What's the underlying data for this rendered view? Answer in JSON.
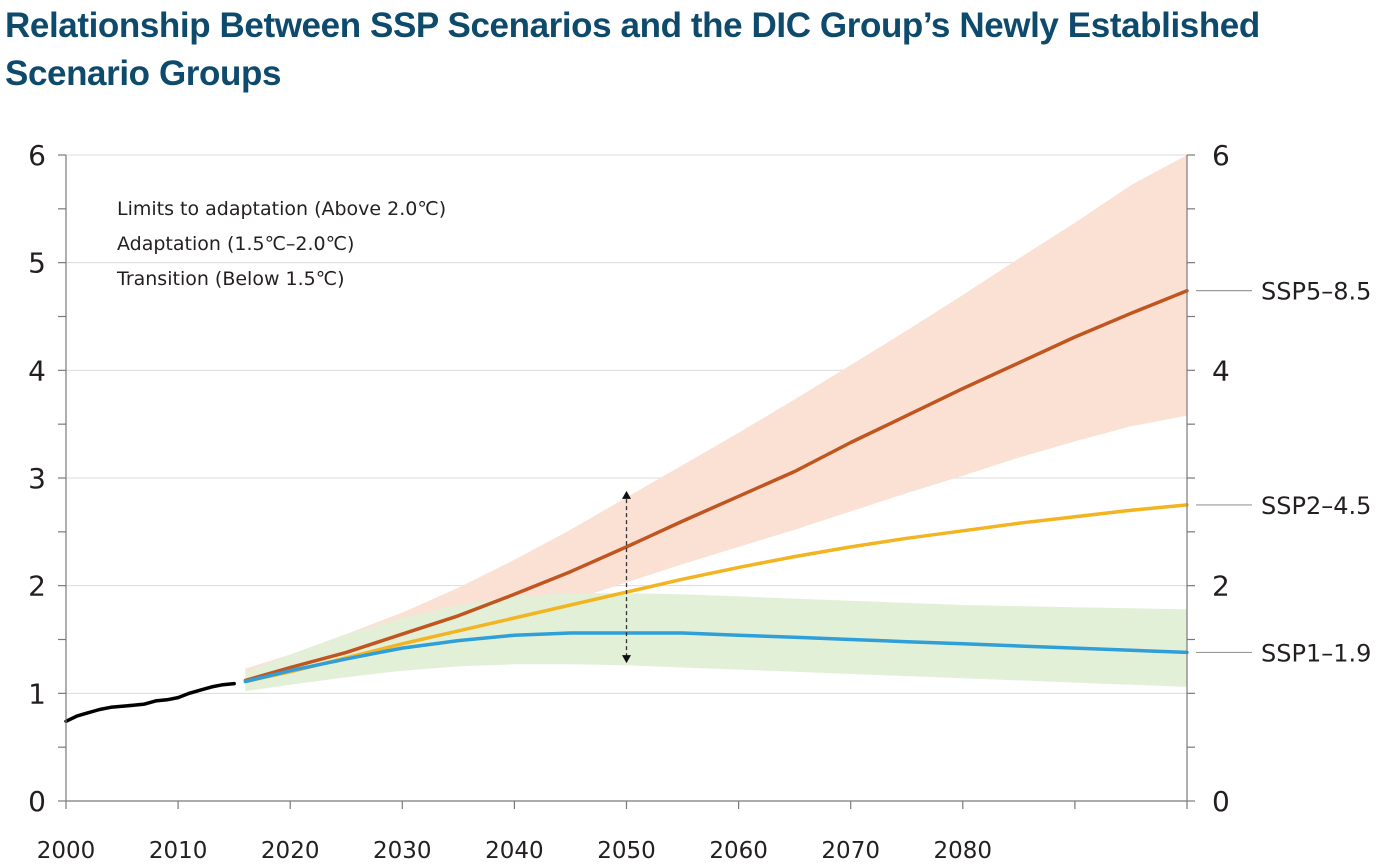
{
  "title": "Relationship Between SSP Scenarios and the DIC Group’s Newly Established Scenario Groups",
  "chart_data": {
    "type": "line",
    "title": "Relationship Between SSP Scenarios and the DIC Group’s Newly Established Scenario Groups",
    "xlabel": "",
    "ylabel": "",
    "xlim": [
      2000,
      2100
    ],
    "ylim": [
      0,
      6
    ],
    "x_ticks": [
      2000,
      2010,
      2020,
      2030,
      2040,
      2050,
      2060,
      2070,
      2080
    ],
    "y_ticks": [
      0,
      1,
      2,
      3,
      4,
      5,
      6
    ],
    "y_ticks_right": [
      0,
      2,
      4,
      6
    ],
    "grid": "horizontal",
    "legend_placement": "top-left",
    "legend": [
      "Limits to adaptation (Above 2.0℃)",
      "Adaptation (1.5℃–2.0℃)",
      "Transition (Below 1.5℃)"
    ],
    "historical": {
      "color": "#000000",
      "x": [
        2000,
        2001,
        2002,
        2003,
        2004,
        2005,
        2006,
        2007,
        2008,
        2009,
        2010,
        2011,
        2012,
        2013,
        2014,
        2015
      ],
      "y": [
        0.74,
        0.79,
        0.82,
        0.85,
        0.87,
        0.88,
        0.89,
        0.9,
        0.93,
        0.94,
        0.96,
        1.0,
        1.03,
        1.06,
        1.08,
        1.09
      ]
    },
    "series": [
      {
        "name": "SSP5–8.5",
        "color": "#c0551f",
        "band_color": "#fbdfd2",
        "x": [
          2016,
          2020,
          2025,
          2030,
          2035,
          2040,
          2045,
          2050,
          2055,
          2060,
          2065,
          2070,
          2075,
          2080,
          2085,
          2090,
          2095,
          2100
        ],
        "y": [
          1.12,
          1.24,
          1.38,
          1.55,
          1.72,
          1.92,
          2.13,
          2.36,
          2.6,
          2.83,
          3.06,
          3.33,
          3.58,
          3.83,
          4.07,
          4.31,
          4.53,
          4.74
        ],
        "band_low": [
          1.05,
          1.15,
          1.27,
          1.4,
          1.55,
          1.7,
          1.86,
          2.03,
          2.2,
          2.36,
          2.52,
          2.69,
          2.86,
          3.02,
          3.19,
          3.34,
          3.48,
          3.58
        ],
        "band_high": [
          1.23,
          1.36,
          1.55,
          1.75,
          1.98,
          2.24,
          2.52,
          2.82,
          3.12,
          3.42,
          3.73,
          4.05,
          4.37,
          4.7,
          5.04,
          5.37,
          5.72,
          6.0
        ]
      },
      {
        "name": "SSP2–4.5",
        "color": "#f2b421",
        "x": [
          2016,
          2020,
          2025,
          2030,
          2035,
          2040,
          2045,
          2050,
          2055,
          2060,
          2065,
          2070,
          2075,
          2080,
          2085,
          2090,
          2095,
          2100
        ],
        "y": [
          1.11,
          1.2,
          1.33,
          1.46,
          1.58,
          1.7,
          1.82,
          1.94,
          2.06,
          2.17,
          2.27,
          2.36,
          2.44,
          2.51,
          2.58,
          2.64,
          2.7,
          2.75
        ]
      },
      {
        "name": "SSP1–1.9",
        "color": "#2e9fd8",
        "band_color": "#e1efd6",
        "x": [
          2016,
          2020,
          2025,
          2030,
          2035,
          2040,
          2045,
          2050,
          2055,
          2060,
          2065,
          2070,
          2075,
          2080,
          2085,
          2090,
          2095,
          2100
        ],
        "y": [
          1.11,
          1.21,
          1.32,
          1.42,
          1.49,
          1.54,
          1.56,
          1.56,
          1.56,
          1.54,
          1.52,
          1.5,
          1.48,
          1.46,
          1.44,
          1.42,
          1.4,
          1.38
        ],
        "band_low": [
          1.02,
          1.08,
          1.15,
          1.21,
          1.25,
          1.27,
          1.27,
          1.26,
          1.24,
          1.22,
          1.2,
          1.18,
          1.16,
          1.14,
          1.12,
          1.1,
          1.08,
          1.06
        ],
        "band_high": [
          1.2,
          1.36,
          1.55,
          1.7,
          1.82,
          1.9,
          1.93,
          1.93,
          1.92,
          1.9,
          1.88,
          1.86,
          1.84,
          1.82,
          1.81,
          1.8,
          1.79,
          1.78
        ]
      }
    ],
    "annotation": {
      "type": "double-arrow",
      "x": 2050,
      "y_from": 1.28,
      "y_to": 2.88
    }
  }
}
